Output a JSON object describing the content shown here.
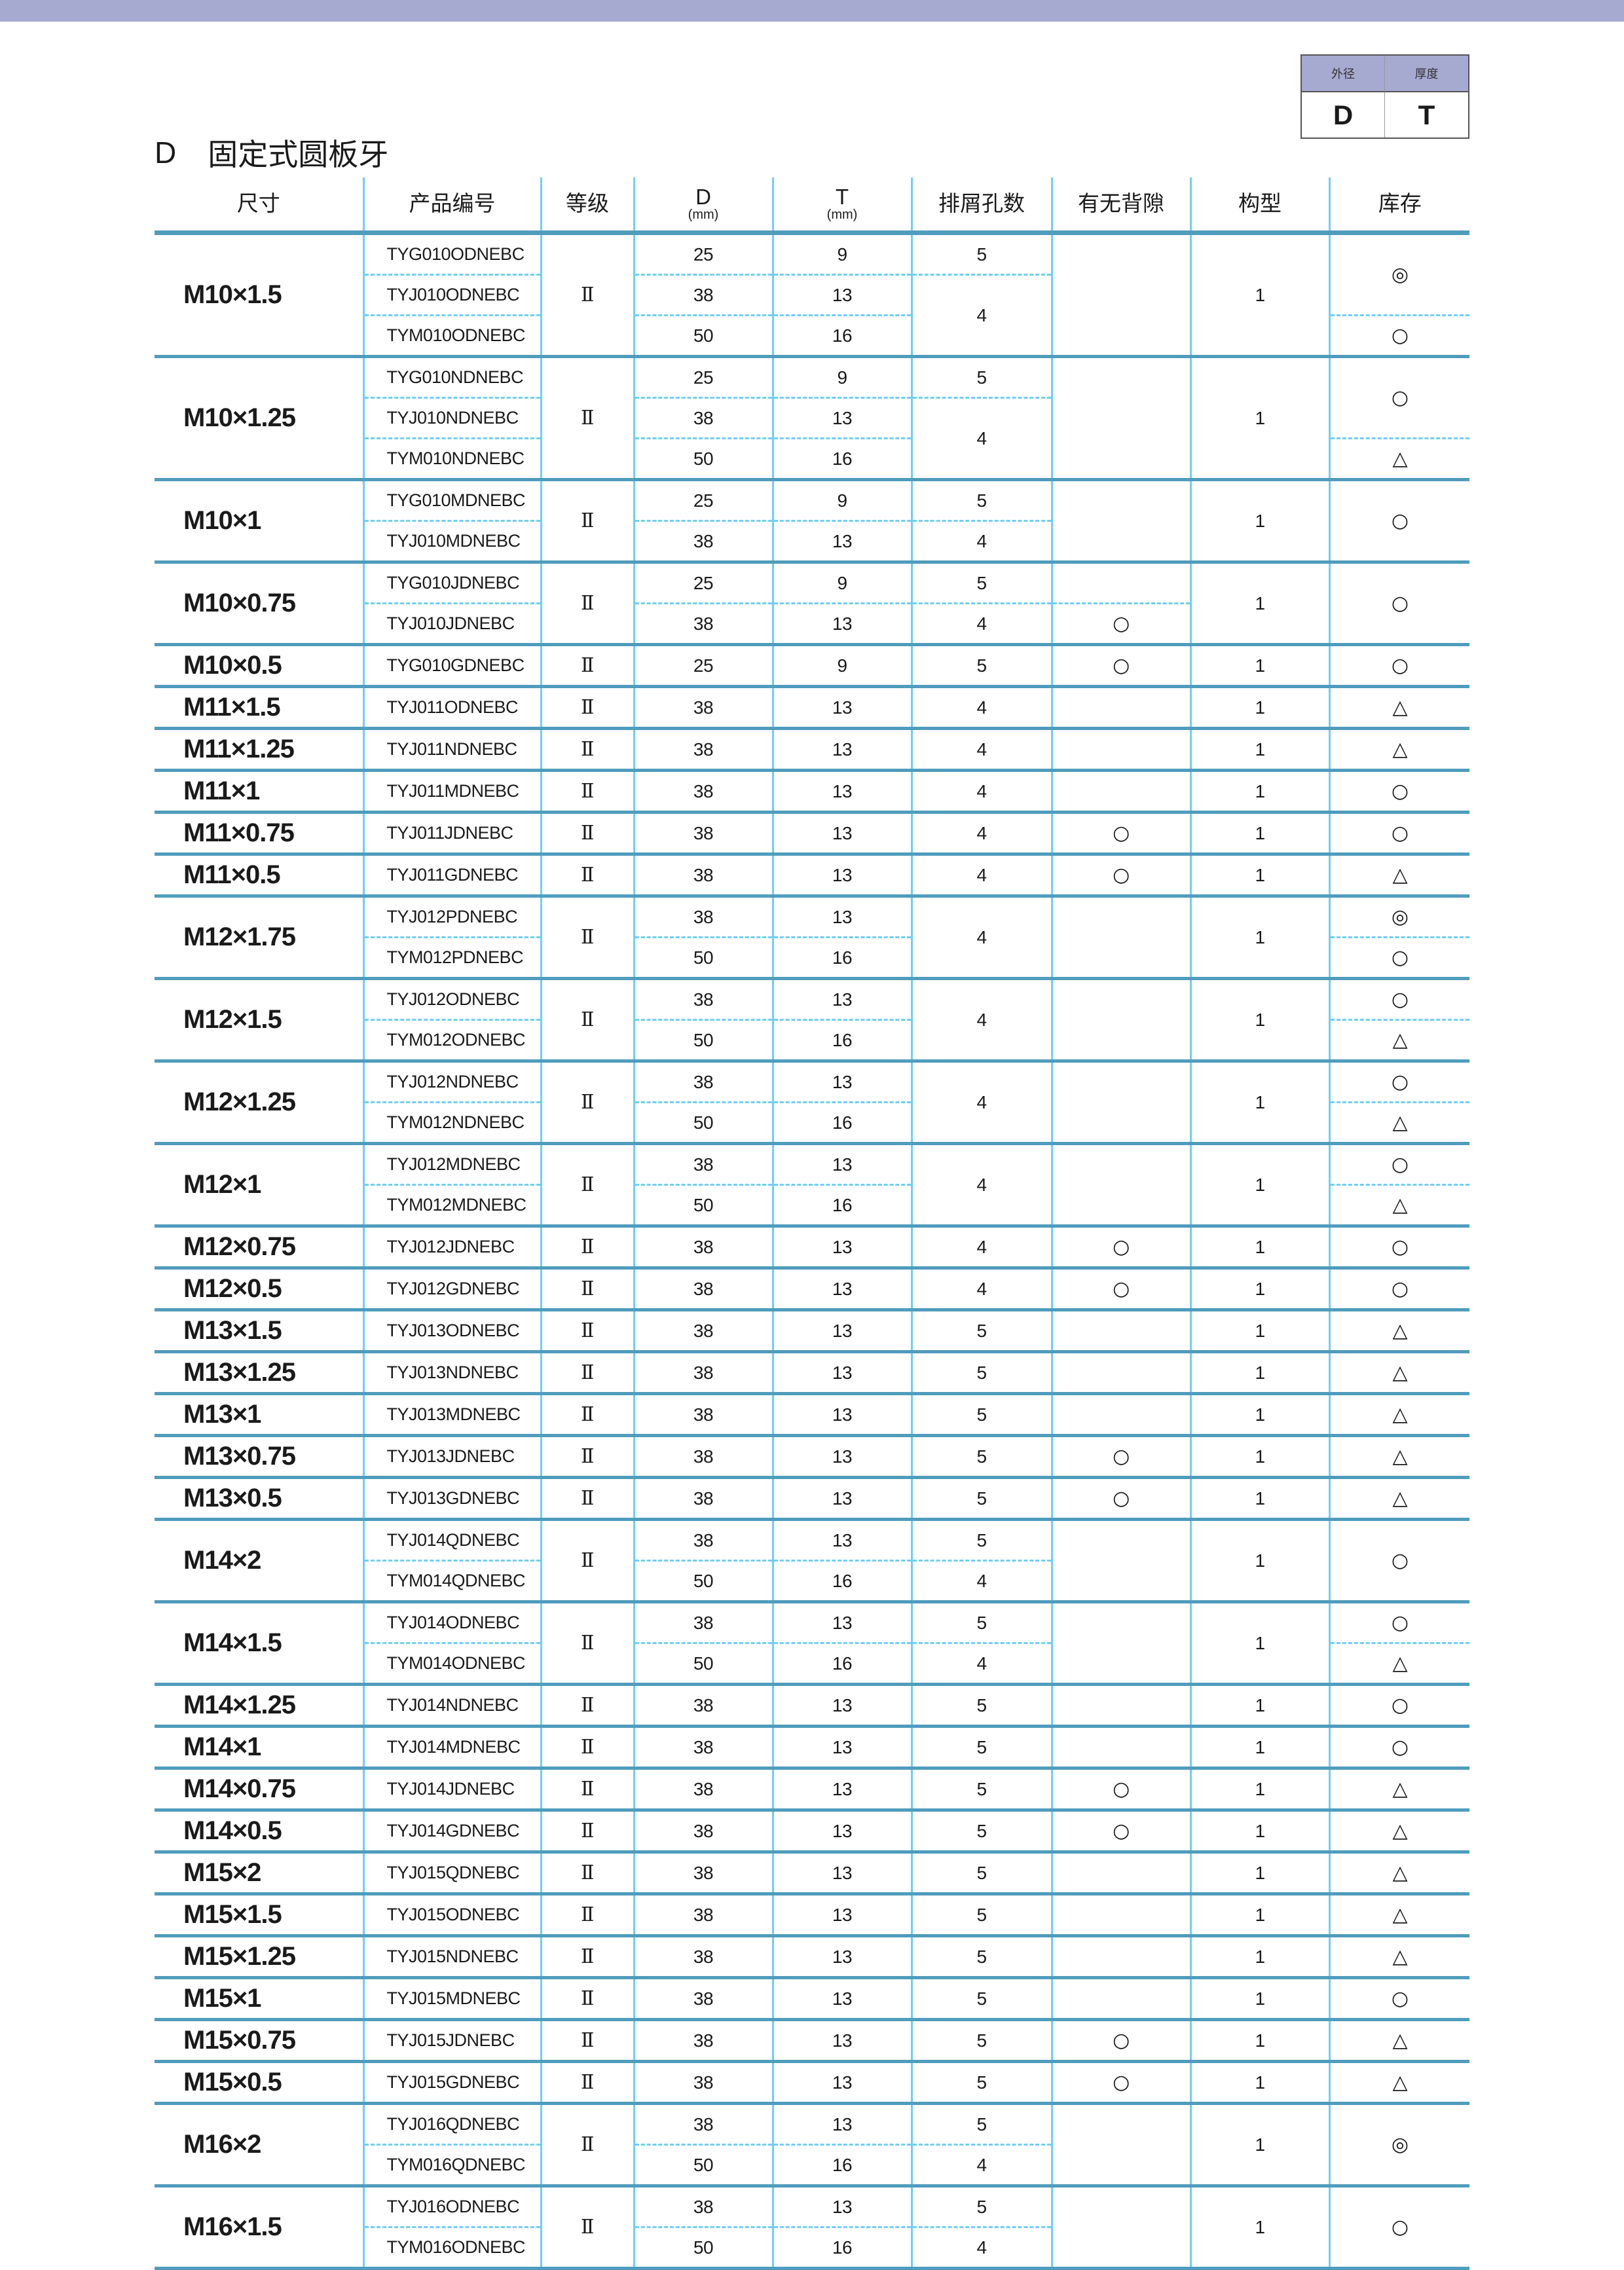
{
  "legend": {
    "headers": [
      "外径",
      "厚度"
    ],
    "values": [
      "D",
      "T"
    ]
  },
  "title": {
    "letter": "D",
    "text": "固定式圆板牙"
  },
  "colors": {
    "topbar": "#a6a9d0",
    "rule": "#4f9cbc",
    "grid": "#6fcff2"
  },
  "columns": [
    {
      "label": "尺寸"
    },
    {
      "label": "产品编号"
    },
    {
      "label": "等级"
    },
    {
      "label": "D",
      "unit": "(mm)"
    },
    {
      "label": "T",
      "unit": "(mm)"
    },
    {
      "label": "排屑孔数"
    },
    {
      "label": "有无背隙"
    },
    {
      "label": "构型"
    },
    {
      "label": "库存"
    }
  ],
  "groups": [
    {
      "size": "M10×1.5",
      "grade": "Ⅱ",
      "rows": [
        [
          "TYG010ODNEBC",
          "25",
          "9"
        ],
        [
          "TYJ010ODNEBC",
          "38",
          "13"
        ],
        [
          "TYM010ODNEBC",
          "50",
          "16"
        ]
      ],
      "holes": [
        [
          "5",
          1
        ],
        [
          "4",
          2
        ]
      ],
      "backlash": [
        [
          "",
          3
        ]
      ],
      "type": "1",
      "stock": [
        [
          "◎",
          2
        ],
        [
          "○",
          1
        ]
      ]
    },
    {
      "size": "M10×1.25",
      "grade": "Ⅱ",
      "rows": [
        [
          "TYG010NDNEBC",
          "25",
          "9"
        ],
        [
          "TYJ010NDNEBC",
          "38",
          "13"
        ],
        [
          "TYM010NDNEBC",
          "50",
          "16"
        ]
      ],
      "holes": [
        [
          "5",
          1
        ],
        [
          "4",
          2
        ]
      ],
      "backlash": [
        [
          "",
          3
        ]
      ],
      "type": "1",
      "stock": [
        [
          "○",
          2
        ],
        [
          "△",
          1
        ]
      ]
    },
    {
      "size": "M10×1",
      "grade": "Ⅱ",
      "rows": [
        [
          "TYG010MDNEBC",
          "25",
          "9"
        ],
        [
          "TYJ010MDNEBC",
          "38",
          "13"
        ]
      ],
      "holes": [
        [
          "5",
          1
        ],
        [
          "4",
          1
        ]
      ],
      "backlash": [
        [
          "",
          2
        ]
      ],
      "type": "1",
      "stock": [
        [
          "○",
          2
        ]
      ]
    },
    {
      "size": "M10×0.75",
      "grade": "Ⅱ",
      "rows": [
        [
          "TYG010JDNEBC",
          "25",
          "9"
        ],
        [
          "TYJ010JDNEBC",
          "38",
          "13"
        ]
      ],
      "holes": [
        [
          "5",
          1
        ],
        [
          "4",
          1
        ]
      ],
      "backlash": [
        [
          "",
          1
        ],
        [
          "○",
          1
        ]
      ],
      "type": "1",
      "stock": [
        [
          "○",
          2
        ]
      ]
    },
    {
      "size": "M10×0.5",
      "grade": "Ⅱ",
      "rows": [
        [
          "TYG010GDNEBC",
          "25",
          "9"
        ]
      ],
      "holes": [
        [
          "5",
          1
        ]
      ],
      "backlash": [
        [
          "○",
          1
        ]
      ],
      "type": "1",
      "stock": [
        [
          "○",
          1
        ]
      ]
    },
    {
      "size": "M11×1.5",
      "grade": "Ⅱ",
      "rows": [
        [
          "TYJ011ODNEBC",
          "38",
          "13"
        ]
      ],
      "holes": [
        [
          "4",
          1
        ]
      ],
      "backlash": [
        [
          "",
          1
        ]
      ],
      "type": "1",
      "stock": [
        [
          "△",
          1
        ]
      ]
    },
    {
      "size": "M11×1.25",
      "grade": "Ⅱ",
      "rows": [
        [
          "TYJ011NDNEBC",
          "38",
          "13"
        ]
      ],
      "holes": [
        [
          "4",
          1
        ]
      ],
      "backlash": [
        [
          "",
          1
        ]
      ],
      "type": "1",
      "stock": [
        [
          "△",
          1
        ]
      ]
    },
    {
      "size": "M11×1",
      "grade": "Ⅱ",
      "rows": [
        [
          "TYJ011MDNEBC",
          "38",
          "13"
        ]
      ],
      "holes": [
        [
          "4",
          1
        ]
      ],
      "backlash": [
        [
          "",
          1
        ]
      ],
      "type": "1",
      "stock": [
        [
          "○",
          1
        ]
      ]
    },
    {
      "size": "M11×0.75",
      "grade": "Ⅱ",
      "rows": [
        [
          "TYJ011JDNEBC",
          "38",
          "13"
        ]
      ],
      "holes": [
        [
          "4",
          1
        ]
      ],
      "backlash": [
        [
          "○",
          1
        ]
      ],
      "type": "1",
      "stock": [
        [
          "○",
          1
        ]
      ]
    },
    {
      "size": "M11×0.5",
      "grade": "Ⅱ",
      "rows": [
        [
          "TYJ011GDNEBC",
          "38",
          "13"
        ]
      ],
      "holes": [
        [
          "4",
          1
        ]
      ],
      "backlash": [
        [
          "○",
          1
        ]
      ],
      "type": "1",
      "stock": [
        [
          "△",
          1
        ]
      ]
    },
    {
      "size": "M12×1.75",
      "grade": "Ⅱ",
      "rows": [
        [
          "TYJ012PDNEBC",
          "38",
          "13"
        ],
        [
          "TYM012PDNEBC",
          "50",
          "16"
        ]
      ],
      "holes": [
        [
          "4",
          2
        ]
      ],
      "backlash": [
        [
          "",
          2
        ]
      ],
      "type": "1",
      "stock": [
        [
          "◎",
          1
        ],
        [
          "○",
          1
        ]
      ]
    },
    {
      "size": "M12×1.5",
      "grade": "Ⅱ",
      "rows": [
        [
          "TYJ012ODNEBC",
          "38",
          "13"
        ],
        [
          "TYM012ODNEBC",
          "50",
          "16"
        ]
      ],
      "holes": [
        [
          "4",
          2
        ]
      ],
      "backlash": [
        [
          "",
          2
        ]
      ],
      "type": "1",
      "stock": [
        [
          "○",
          1
        ],
        [
          "△",
          1
        ]
      ]
    },
    {
      "size": "M12×1.25",
      "grade": "Ⅱ",
      "rows": [
        [
          "TYJ012NDNEBC",
          "38",
          "13"
        ],
        [
          "TYM012NDNEBC",
          "50",
          "16"
        ]
      ],
      "holes": [
        [
          "4",
          2
        ]
      ],
      "backlash": [
        [
          "",
          2
        ]
      ],
      "type": "1",
      "stock": [
        [
          "○",
          1
        ],
        [
          "△",
          1
        ]
      ]
    },
    {
      "size": "M12×1",
      "grade": "Ⅱ",
      "rows": [
        [
          "TYJ012MDNEBC",
          "38",
          "13"
        ],
        [
          "TYM012MDNEBC",
          "50",
          "16"
        ]
      ],
      "holes": [
        [
          "4",
          2
        ]
      ],
      "backlash": [
        [
          "",
          2
        ]
      ],
      "type": "1",
      "stock": [
        [
          "○",
          1
        ],
        [
          "△",
          1
        ]
      ]
    },
    {
      "size": "M12×0.75",
      "grade": "Ⅱ",
      "rows": [
        [
          "TYJ012JDNEBC",
          "38",
          "13"
        ]
      ],
      "holes": [
        [
          "4",
          1
        ]
      ],
      "backlash": [
        [
          "○",
          1
        ]
      ],
      "type": "1",
      "stock": [
        [
          "○",
          1
        ]
      ]
    },
    {
      "size": "M12×0.5",
      "grade": "Ⅱ",
      "rows": [
        [
          "TYJ012GDNEBC",
          "38",
          "13"
        ]
      ],
      "holes": [
        [
          "4",
          1
        ]
      ],
      "backlash": [
        [
          "○",
          1
        ]
      ],
      "type": "1",
      "stock": [
        [
          "○",
          1
        ]
      ]
    },
    {
      "size": "M13×1.5",
      "grade": "Ⅱ",
      "rows": [
        [
          "TYJ013ODNEBC",
          "38",
          "13"
        ]
      ],
      "holes": [
        [
          "5",
          1
        ]
      ],
      "backlash": [
        [
          "",
          1
        ]
      ],
      "type": "1",
      "stock": [
        [
          "△",
          1
        ]
      ]
    },
    {
      "size": "M13×1.25",
      "grade": "Ⅱ",
      "rows": [
        [
          "TYJ013NDNEBC",
          "38",
          "13"
        ]
      ],
      "holes": [
        [
          "5",
          1
        ]
      ],
      "backlash": [
        [
          "",
          1
        ]
      ],
      "type": "1",
      "stock": [
        [
          "△",
          1
        ]
      ]
    },
    {
      "size": "M13×1",
      "grade": "Ⅱ",
      "rows": [
        [
          "TYJ013MDNEBC",
          "38",
          "13"
        ]
      ],
      "holes": [
        [
          "5",
          1
        ]
      ],
      "backlash": [
        [
          "",
          1
        ]
      ],
      "type": "1",
      "stock": [
        [
          "△",
          1
        ]
      ]
    },
    {
      "size": "M13×0.75",
      "grade": "Ⅱ",
      "rows": [
        [
          "TYJ013JDNEBC",
          "38",
          "13"
        ]
      ],
      "holes": [
        [
          "5",
          1
        ]
      ],
      "backlash": [
        [
          "○",
          1
        ]
      ],
      "type": "1",
      "stock": [
        [
          "△",
          1
        ]
      ]
    },
    {
      "size": "M13×0.5",
      "grade": "Ⅱ",
      "rows": [
        [
          "TYJ013GDNEBC",
          "38",
          "13"
        ]
      ],
      "holes": [
        [
          "5",
          1
        ]
      ],
      "backlash": [
        [
          "○",
          1
        ]
      ],
      "type": "1",
      "stock": [
        [
          "△",
          1
        ]
      ]
    },
    {
      "size": "M14×2",
      "grade": "Ⅱ",
      "rows": [
        [
          "TYJ014QDNEBC",
          "38",
          "13"
        ],
        [
          "TYM014QDNEBC",
          "50",
          "16"
        ]
      ],
      "holes": [
        [
          "5",
          1
        ],
        [
          "4",
          1
        ]
      ],
      "backlash": [
        [
          "",
          2
        ]
      ],
      "type": "1",
      "stock": [
        [
          "○",
          2
        ]
      ]
    },
    {
      "size": "M14×1.5",
      "grade": "Ⅱ",
      "rows": [
        [
          "TYJ014ODNEBC",
          "38",
          "13"
        ],
        [
          "TYM014ODNEBC",
          "50",
          "16"
        ]
      ],
      "holes": [
        [
          "5",
          1
        ],
        [
          "4",
          1
        ]
      ],
      "backlash": [
        [
          "",
          2
        ]
      ],
      "type": "1",
      "stock": [
        [
          "○",
          1
        ],
        [
          "△",
          1
        ]
      ]
    },
    {
      "size": "M14×1.25",
      "grade": "Ⅱ",
      "rows": [
        [
          "TYJ014NDNEBC",
          "38",
          "13"
        ]
      ],
      "holes": [
        [
          "5",
          1
        ]
      ],
      "backlash": [
        [
          "",
          1
        ]
      ],
      "type": "1",
      "stock": [
        [
          "○",
          1
        ]
      ]
    },
    {
      "size": "M14×1",
      "grade": "Ⅱ",
      "rows": [
        [
          "TYJ014MDNEBC",
          "38",
          "13"
        ]
      ],
      "holes": [
        [
          "5",
          1
        ]
      ],
      "backlash": [
        [
          "",
          1
        ]
      ],
      "type": "1",
      "stock": [
        [
          "○",
          1
        ]
      ]
    },
    {
      "size": "M14×0.75",
      "grade": "Ⅱ",
      "rows": [
        [
          "TYJ014JDNEBC",
          "38",
          "13"
        ]
      ],
      "holes": [
        [
          "5",
          1
        ]
      ],
      "backlash": [
        [
          "○",
          1
        ]
      ],
      "type": "1",
      "stock": [
        [
          "△",
          1
        ]
      ]
    },
    {
      "size": "M14×0.5",
      "grade": "Ⅱ",
      "rows": [
        [
          "TYJ014GDNEBC",
          "38",
          "13"
        ]
      ],
      "holes": [
        [
          "5",
          1
        ]
      ],
      "backlash": [
        [
          "○",
          1
        ]
      ],
      "type": "1",
      "stock": [
        [
          "△",
          1
        ]
      ]
    },
    {
      "size": "M15×2",
      "grade": "Ⅱ",
      "rows": [
        [
          "TYJ015QDNEBC",
          "38",
          "13"
        ]
      ],
      "holes": [
        [
          "5",
          1
        ]
      ],
      "backlash": [
        [
          "",
          1
        ]
      ],
      "type": "1",
      "stock": [
        [
          "△",
          1
        ]
      ]
    },
    {
      "size": "M15×1.5",
      "grade": "Ⅱ",
      "rows": [
        [
          "TYJ015ODNEBC",
          "38",
          "13"
        ]
      ],
      "holes": [
        [
          "5",
          1
        ]
      ],
      "backlash": [
        [
          "",
          1
        ]
      ],
      "type": "1",
      "stock": [
        [
          "△",
          1
        ]
      ]
    },
    {
      "size": "M15×1.25",
      "grade": "Ⅱ",
      "rows": [
        [
          "TYJ015NDNEBC",
          "38",
          "13"
        ]
      ],
      "holes": [
        [
          "5",
          1
        ]
      ],
      "backlash": [
        [
          "",
          1
        ]
      ],
      "type": "1",
      "stock": [
        [
          "△",
          1
        ]
      ]
    },
    {
      "size": "M15×1",
      "grade": "Ⅱ",
      "rows": [
        [
          "TYJ015MDNEBC",
          "38",
          "13"
        ]
      ],
      "holes": [
        [
          "5",
          1
        ]
      ],
      "backlash": [
        [
          "",
          1
        ]
      ],
      "type": "1",
      "stock": [
        [
          "○",
          1
        ]
      ]
    },
    {
      "size": "M15×0.75",
      "grade": "Ⅱ",
      "rows": [
        [
          "TYJ015JDNEBC",
          "38",
          "13"
        ]
      ],
      "holes": [
        [
          "5",
          1
        ]
      ],
      "backlash": [
        [
          "○",
          1
        ]
      ],
      "type": "1",
      "stock": [
        [
          "△",
          1
        ]
      ]
    },
    {
      "size": "M15×0.5",
      "grade": "Ⅱ",
      "rows": [
        [
          "TYJ015GDNEBC",
          "38",
          "13"
        ]
      ],
      "holes": [
        [
          "5",
          1
        ]
      ],
      "backlash": [
        [
          "○",
          1
        ]
      ],
      "type": "1",
      "stock": [
        [
          "△",
          1
        ]
      ]
    },
    {
      "size": "M16×2",
      "grade": "Ⅱ",
      "rows": [
        [
          "TYJ016QDNEBC",
          "38",
          "13"
        ],
        [
          "TYM016QDNEBC",
          "50",
          "16"
        ]
      ],
      "holes": [
        [
          "5",
          1
        ],
        [
          "4",
          1
        ]
      ],
      "backlash": [
        [
          "",
          2
        ]
      ],
      "type": "1",
      "stock": [
        [
          "◎",
          2
        ]
      ]
    },
    {
      "size": "M16×1.5",
      "grade": "Ⅱ",
      "rows": [
        [
          "TYJ016ODNEBC",
          "38",
          "13"
        ],
        [
          "TYM016ODNEBC",
          "50",
          "16"
        ]
      ],
      "holes": [
        [
          "5",
          1
        ],
        [
          "4",
          1
        ]
      ],
      "backlash": [
        [
          "",
          2
        ]
      ],
      "type": "1",
      "stock": [
        [
          "○",
          2
        ]
      ]
    }
  ]
}
